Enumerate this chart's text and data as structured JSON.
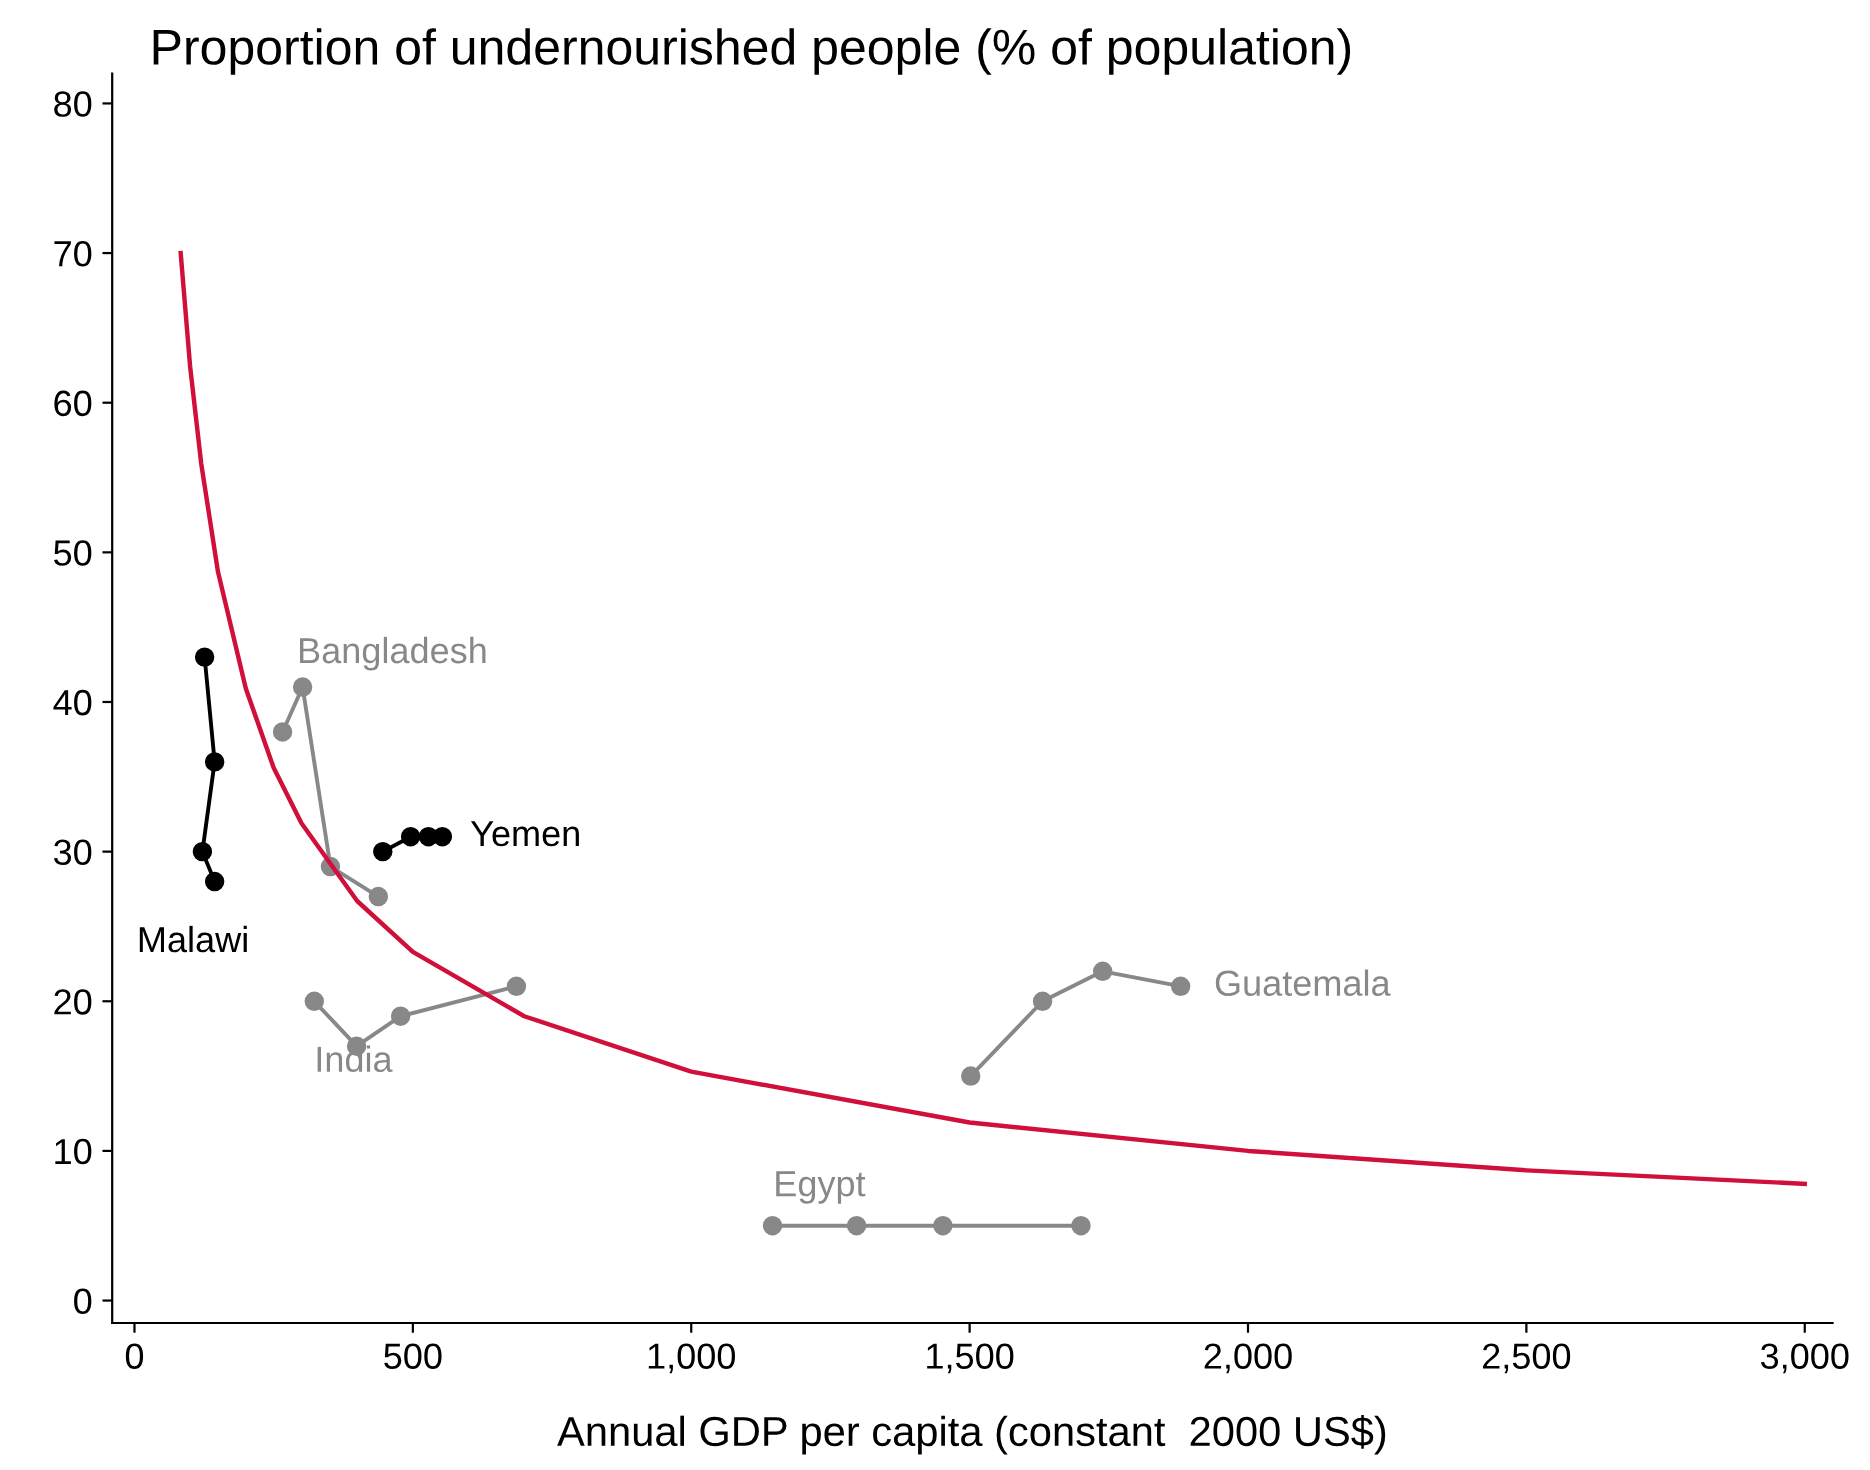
{
  "chart_data": {
    "type": "line",
    "title": "Proportion of undernourished people (% of population)",
    "xlabel": "Annual GDP per capita (constant  2000 US$)",
    "xlim": [
      -40,
      3050
    ],
    "ylim": [
      -1.5,
      82
    ],
    "xticks": [
      0,
      500,
      {
        "value": 1000,
        "label": "1,000"
      },
      {
        "value": 1500,
        "label": "1,500"
      },
      {
        "value": 2000,
        "label": "2,000"
      },
      {
        "value": 2500,
        "label": "2,500"
      },
      {
        "value": 3000,
        "label": "3,000"
      }
    ],
    "yticks": [
      0,
      10,
      20,
      30,
      40,
      50,
      60,
      70,
      80
    ],
    "grid": false,
    "legend": false,
    "marker": "circle",
    "line_style": "solid",
    "series": [
      {
        "name": "Malawi",
        "color": "#000000",
        "x": [
          126,
          144,
          122,
          144
        ],
        "values": [
          43,
          36,
          30,
          28
        ]
      },
      {
        "name": "Yemen",
        "color": "#000000",
        "x": [
          446,
          496,
          528,
          553
        ],
        "values": [
          30,
          31,
          31,
          31
        ]
      },
      {
        "name": "Bangladesh",
        "color": "#888888",
        "x": [
          266,
          302,
          352,
          438
        ],
        "values": [
          38,
          41,
          29,
          27
        ]
      },
      {
        "name": "India",
        "color": "#888888",
        "x": [
          323,
          399,
          478,
          686
        ],
        "values": [
          20,
          17,
          19,
          21
        ]
      },
      {
        "name": "Guatemala",
        "color": "#888888",
        "x": [
          1502,
          1631,
          1739,
          1879
        ],
        "values": [
          15,
          20,
          22,
          21
        ]
      },
      {
        "name": "Egypt",
        "color": "#888888",
        "x": [
          1146,
          1297,
          1452,
          1700
        ],
        "values": [
          5,
          5,
          5,
          5
        ]
      },
      {
        "color": "#d0103a",
        "marker": "none",
        "x": [
          83,
          100,
          120,
          150,
          200,
          250,
          300,
          400,
          500,
          700,
          1000,
          1500,
          2000,
          2500,
          3000
        ],
        "values": [
          70,
          62.4,
          55.9,
          48.7,
          40.9,
          35.6,
          31.9,
          26.7,
          23.3,
          19.0,
          15.3,
          11.9,
          10.0,
          8.7,
          7.8
        ]
      }
    ]
  }
}
